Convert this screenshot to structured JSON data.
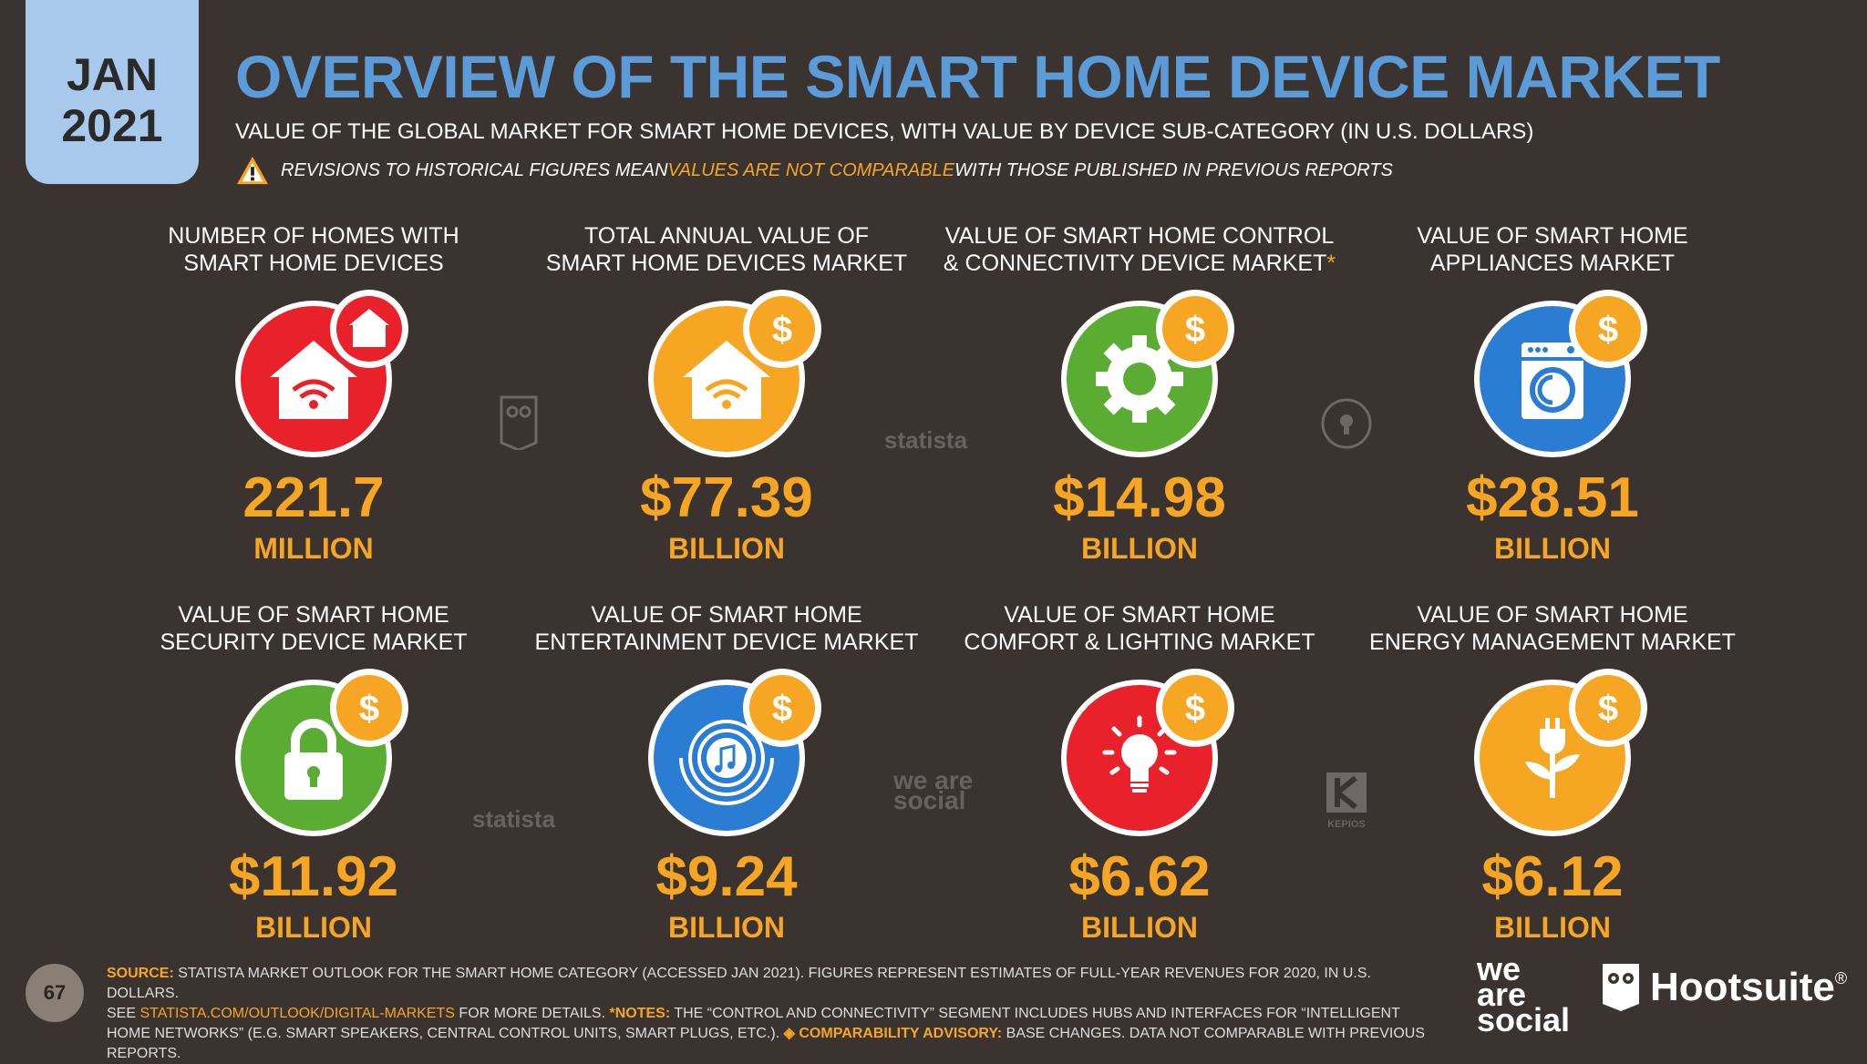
{
  "date_badge": {
    "month": "JAN",
    "year": "2021"
  },
  "title": "OVERVIEW OF THE SMART HOME DEVICE MARKET",
  "subtitle": "VALUE OF THE GLOBAL MARKET FOR SMART HOME DEVICES, WITH VALUE BY DEVICE SUB-CATEGORY (IN U.S. DOLLARS)",
  "warning": {
    "part1": "REVISIONS TO HISTORICAL FIGURES MEAN ",
    "highlight": "VALUES ARE NOT COMPARABLE",
    "part2": " WITH THOSE PUBLISHED IN PREVIOUS REPORTS"
  },
  "colors": {
    "red": "#e8212b",
    "orange": "#f6a623",
    "green": "#5aac32",
    "blue": "#2b7cd3",
    "title_blue": "#5b9bd8",
    "background": "#3a3330"
  },
  "tiles": [
    {
      "label_line1": "NUMBER OF HOMES WITH",
      "label_line2": "SMART HOME DEVICES",
      "value": "221.7",
      "unit": "MILLION",
      "icon": "house-wifi-icon",
      "badge_icon": "house-icon",
      "color": "red"
    },
    {
      "label_line1": "TOTAL ANNUAL VALUE OF",
      "label_line2": "SMART HOME DEVICES MARKET",
      "value": "$77.39",
      "unit": "BILLION",
      "icon": "house-wifi-icon",
      "badge_icon": "dollar-icon",
      "color": "orange"
    },
    {
      "label_line1": "VALUE OF SMART HOME CONTROL",
      "label_line2": "& CONNECTIVITY DEVICE MARKET",
      "asterisk": "*",
      "value": "$14.98",
      "unit": "BILLION",
      "icon": "gear-icon",
      "badge_icon": "dollar-icon",
      "color": "green"
    },
    {
      "label_line1": "VALUE OF SMART HOME",
      "label_line2": "APPLIANCES MARKET",
      "value": "$28.51",
      "unit": "BILLION",
      "icon": "washing-machine-icon",
      "badge_icon": "dollar-icon",
      "color": "blue"
    },
    {
      "label_line1": "VALUE OF SMART HOME",
      "label_line2": "SECURITY DEVICE MARKET",
      "value": "$11.92",
      "unit": "BILLION",
      "icon": "padlock-icon",
      "badge_icon": "dollar-icon",
      "color": "green"
    },
    {
      "label_line1": "VALUE OF SMART HOME",
      "label_line2": "ENTERTAINMENT DEVICE MARKET",
      "value": "$9.24",
      "unit": "BILLION",
      "icon": "music-speaker-icon",
      "badge_icon": "dollar-icon",
      "color": "blue"
    },
    {
      "label_line1": "VALUE OF SMART HOME",
      "label_line2": "COMFORT & LIGHTING MARKET",
      "value": "$6.62",
      "unit": "BILLION",
      "icon": "lightbulb-icon",
      "badge_icon": "dollar-icon",
      "color": "red"
    },
    {
      "label_line1": "VALUE OF SMART HOME",
      "label_line2": "ENERGY MANAGEMENT MARKET",
      "value": "$6.12",
      "unit": "BILLION",
      "icon": "plug-plant-icon",
      "badge_icon": "dollar-icon",
      "color": "orange"
    }
  ],
  "watermarks": {
    "statista": "statista",
    "wearesocial": "we are social",
    "kepios": "KEPIOS"
  },
  "footer": {
    "source_key": "SOURCE:",
    "source_text": " STATISTA MARKET OUTLOOK FOR THE SMART HOME CATEGORY (ACCESSED JAN 2021). FIGURES REPRESENT ESTIMATES OF FULL-YEAR REVENUES FOR 2020, IN U.S. DOLLARS.",
    "see": "SEE ",
    "link": "STATISTA.COM/OUTLOOK/DIGITAL-MARKETS",
    "more": " FOR MORE DETAILS. ",
    "notes_key": "*NOTES:",
    "notes_text": " THE “CONTROL AND CONNECTIVITY” SEGMENT INCLUDES HUBS AND INTERFACES FOR “INTELLIGENT HOME NETWORKS” (E.G. SMART SPEAKERS, CENTRAL CONTROL UNITS, SMART PLUGS, ETC.). ",
    "advisory_key": "◈ COMPARABILITY ADVISORY:",
    "advisory_text": " BASE CHANGES. DATA NOT COMPARABLE WITH PREVIOUS REPORTS."
  },
  "page_number": "67",
  "brand": {
    "was_line1": "we",
    "was_line2": "are",
    "was_line3": "social",
    "hootsuite": "Hootsuite",
    "registered": "®"
  }
}
